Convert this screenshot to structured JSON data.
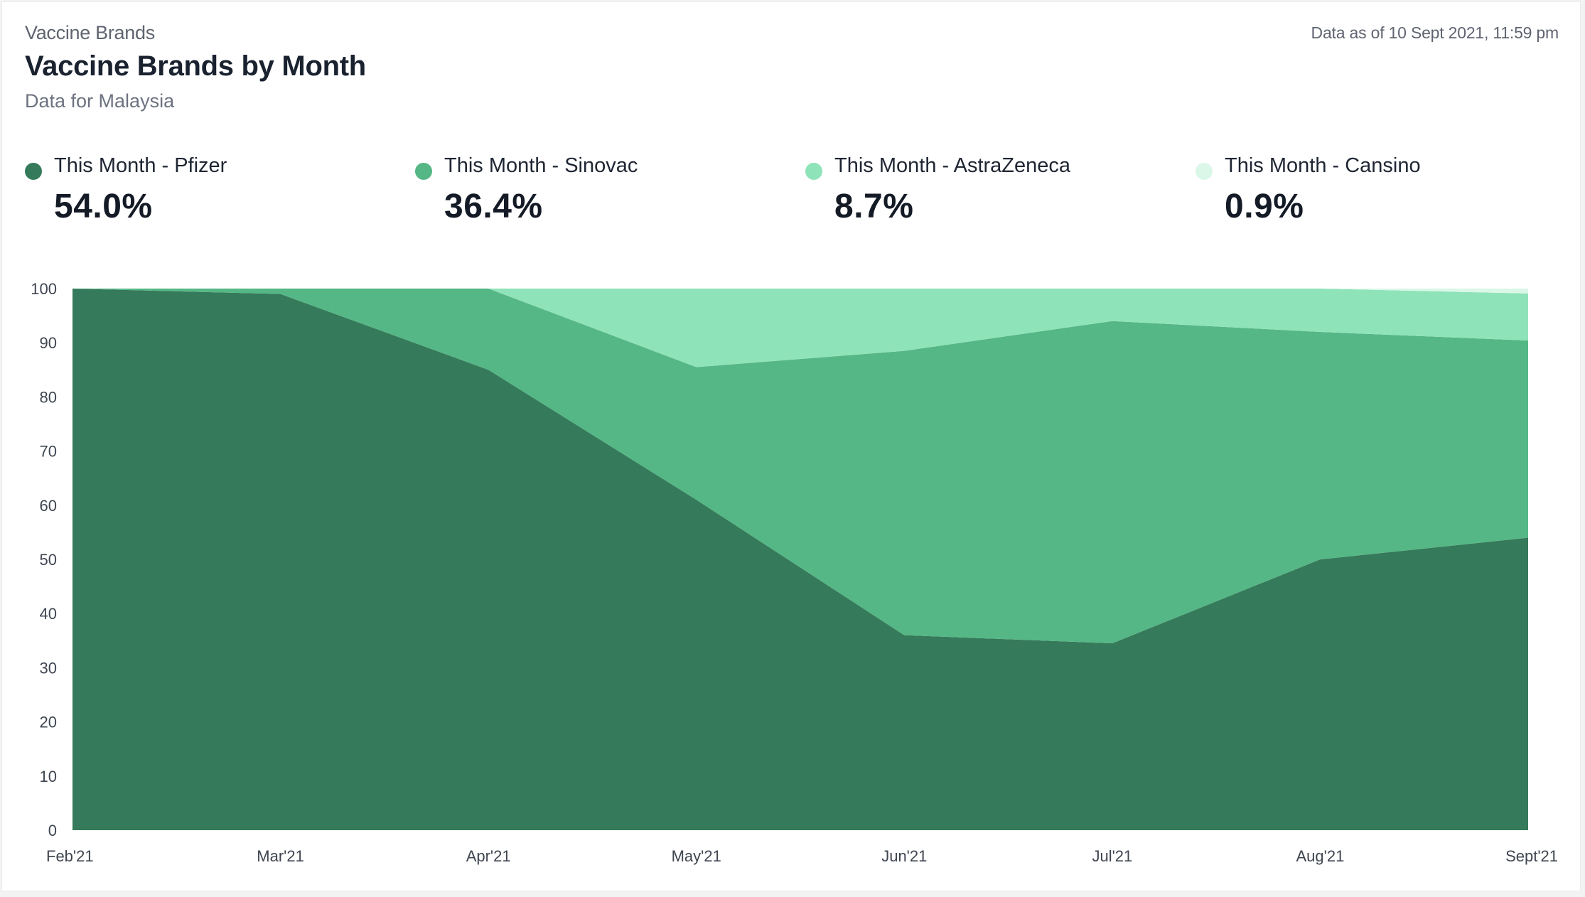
{
  "header": {
    "eyebrow": "Vaccine Brands",
    "title": "Vaccine Brands by Month",
    "subtitle": "Data for Malaysia",
    "as_of": "Data as of 10 Sept 2021, 11:59 pm"
  },
  "legend": [
    {
      "label": "This Month - Pfizer",
      "value": "54.0%",
      "color": "#357a5a"
    },
    {
      "label": "This Month - Sinovac",
      "value": "36.4%",
      "color": "#55b785"
    },
    {
      "label": "This Month - AstraZeneca",
      "value": "8.7%",
      "color": "#8fe3b9"
    },
    {
      "label": "This Month - Cansino",
      "value": "0.9%",
      "color": "#daf7e8"
    }
  ],
  "chart_data": {
    "type": "area",
    "stacked": true,
    "categories": [
      "Feb'21",
      "Mar'21",
      "Apr'21",
      "May'21",
      "Jun'21",
      "Jul'21",
      "Aug'21",
      "Sept'21"
    ],
    "series": [
      {
        "name": "This Month - Pfizer",
        "color": "#357a5a",
        "values": [
          100,
          99,
          85,
          61,
          36,
          34.5,
          50,
          54
        ]
      },
      {
        "name": "This Month - Sinovac",
        "color": "#55b785",
        "values": [
          0,
          1,
          15,
          24.5,
          52.5,
          59.5,
          42,
          36.4
        ]
      },
      {
        "name": "This Month - AstraZeneca",
        "color": "#8fe3b9",
        "values": [
          0,
          0,
          0,
          14.5,
          11.5,
          6,
          8,
          8.7
        ]
      },
      {
        "name": "This Month - Cansino",
        "color": "#daf7e8",
        "values": [
          0,
          0,
          0,
          0,
          0,
          0,
          0,
          0.9
        ]
      }
    ],
    "y_ticks": [
      0,
      10,
      20,
      30,
      40,
      50,
      60,
      70,
      80,
      90,
      100
    ],
    "ylim": [
      0,
      100
    ],
    "grid": false,
    "legend_position": "top"
  }
}
